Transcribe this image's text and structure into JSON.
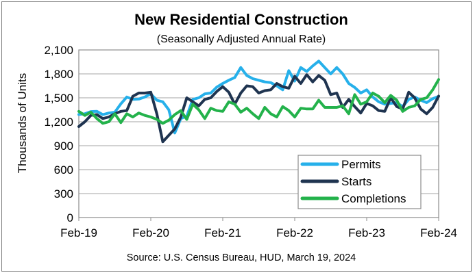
{
  "chart_data": {
    "type": "line",
    "title": "New Residential Construction",
    "subtitle": "(Seasonally Adjusted Annual Rate)",
    "ylabel": "Thousands of Units",
    "source": "Source:  U.S. Census Bureau, HUD, March 19, 2024",
    "ylim": [
      0,
      2100
    ],
    "yticks": [
      "0",
      "300",
      "600",
      "900",
      "1,200",
      "1,500",
      "1,800",
      "2,100"
    ],
    "ytick_values": [
      0,
      300,
      600,
      900,
      1200,
      1500,
      1800,
      2100
    ],
    "xlim": [
      0,
      60
    ],
    "xticks": [
      "Feb-19",
      "Feb-20",
      "Feb-21",
      "Feb-22",
      "Feb-23",
      "Feb-24"
    ],
    "xtick_positions": [
      0,
      12,
      24,
      36,
      48,
      60
    ],
    "grid": true,
    "legend_position": "bottom-right",
    "series": [
      {
        "name": "Permits",
        "color": "#26b0ea",
        "values": [
          1291,
          1300,
          1328,
          1330,
          1290,
          1310,
          1320,
          1425,
          1510,
          1480,
          1485,
          1510,
          1550,
          1470,
          1450,
          1350,
          1060,
          1240,
          1270,
          1480,
          1500,
          1550,
          1560,
          1635,
          1680,
          1720,
          1755,
          1880,
          1780,
          1740,
          1720,
          1700,
          1690,
          1650,
          1600,
          1840,
          1710,
          1880,
          1830,
          1900,
          1960,
          1880,
          1800,
          1880,
          1800,
          1680,
          1630,
          1560,
          1600,
          1510,
          1450,
          1420,
          1430,
          1440,
          1390,
          1480,
          1510,
          1470,
          1440,
          1490,
          1518
        ]
      },
      {
        "name": "Starts",
        "color": "#1f3450",
        "values": [
          1140,
          1200,
          1280,
          1290,
          1240,
          1260,
          1300,
          1330,
          1340,
          1520,
          1560,
          1560,
          1570,
          1300,
          950,
          1030,
          1110,
          1260,
          1500,
          1450,
          1400,
          1480,
          1500,
          1580,
          1640,
          1570,
          1420,
          1560,
          1650,
          1640,
          1560,
          1590,
          1600,
          1680,
          1640,
          1620,
          1770,
          1680,
          1790,
          1700,
          1780,
          1720,
          1540,
          1560,
          1380,
          1480,
          1390,
          1310,
          1430,
          1400,
          1340,
          1330,
          1500,
          1390,
          1360,
          1570,
          1500,
          1360,
          1300,
          1380,
          1521
        ]
      },
      {
        "name": "Completions",
        "color": "#23b24b",
        "values": [
          1330,
          1280,
          1320,
          1240,
          1180,
          1200,
          1300,
          1190,
          1300,
          1260,
          1310,
          1280,
          1260,
          1230,
          1180,
          1220,
          1290,
          1340,
          1230,
          1420,
          1350,
          1240,
          1370,
          1340,
          1330,
          1450,
          1420,
          1320,
          1370,
          1300,
          1240,
          1380,
          1300,
          1260,
          1390,
          1340,
          1260,
          1370,
          1360,
          1360,
          1470,
          1380,
          1380,
          1380,
          1400,
          1300,
          1540,
          1420,
          1450,
          1560,
          1520,
          1440,
          1530,
          1470,
          1330,
          1380,
          1400,
          1480,
          1500,
          1600,
          1730
        ]
      }
    ]
  }
}
